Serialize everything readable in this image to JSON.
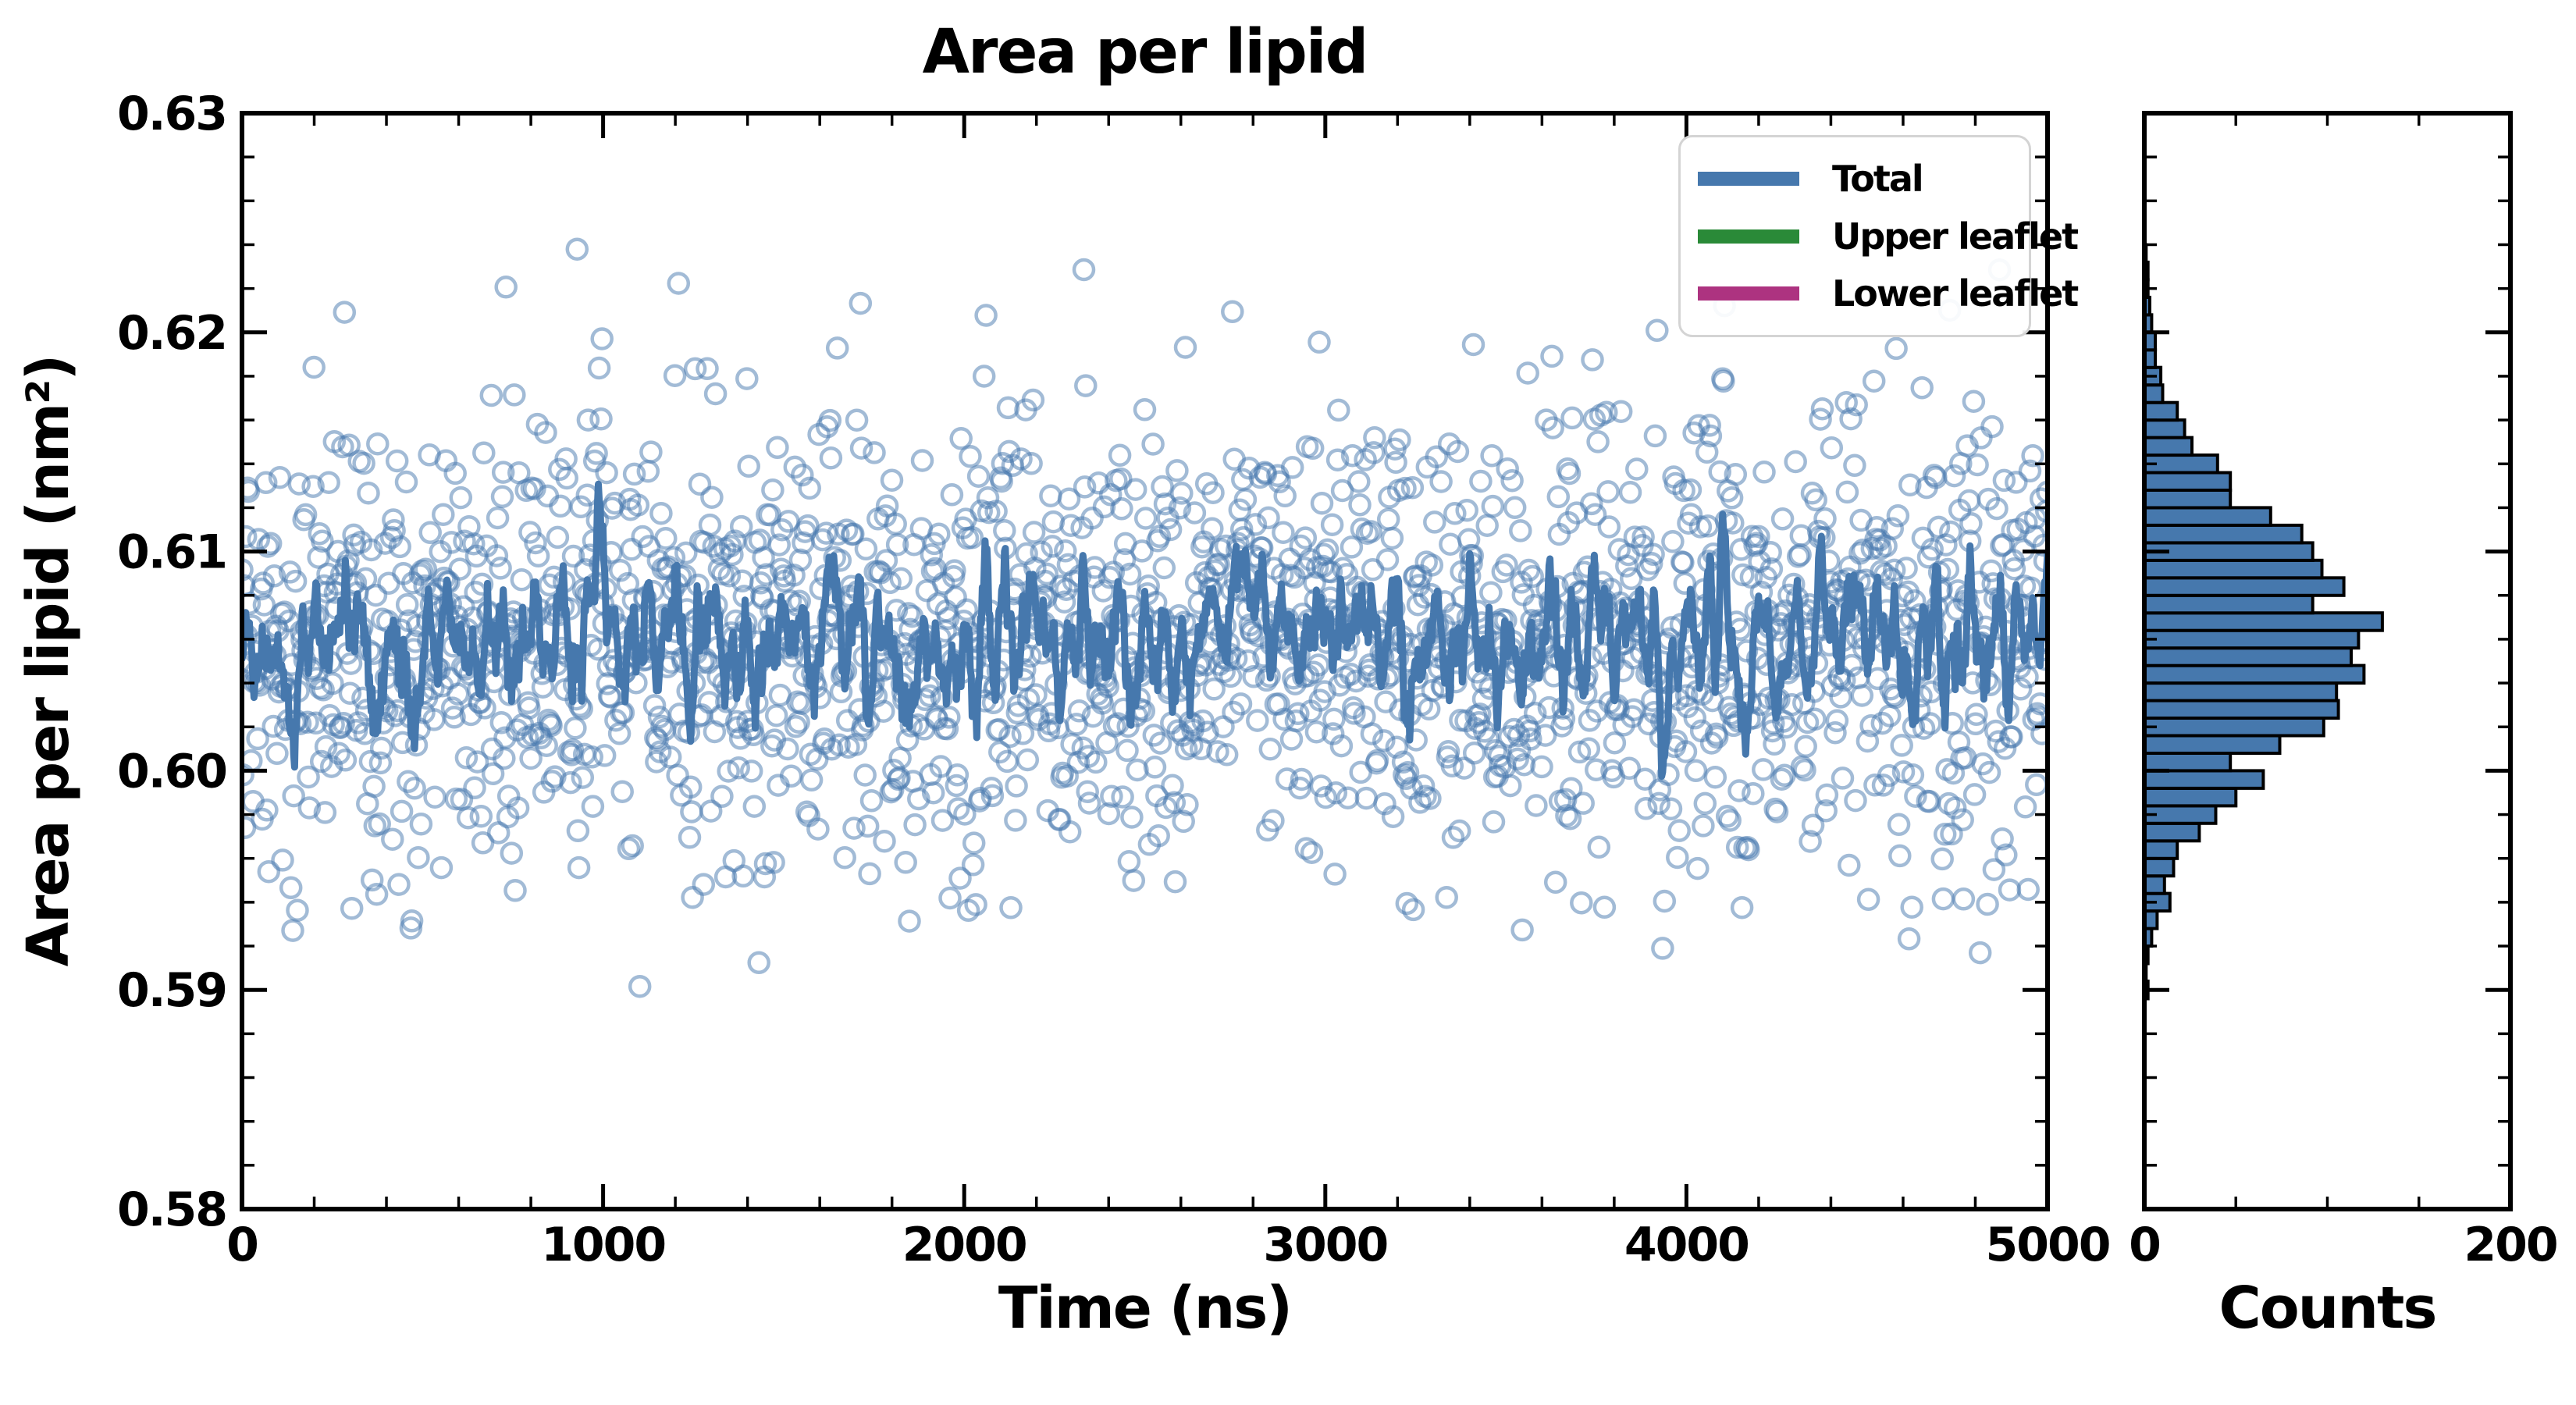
{
  "figure": {
    "background": "#ffffff"
  },
  "legend": {
    "items": [
      {
        "label": "Total",
        "color": "#4678ad"
      },
      {
        "label": "Upper leaflet",
        "color": "#2a8a38"
      },
      {
        "label": "Lower leaflet",
        "color": "#ad3380"
      }
    ]
  },
  "chart_data": {
    "type": "composite",
    "panels": [
      {
        "id": "timeseries",
        "type": "scatter+line",
        "title": "Area per lipid",
        "xlabel": "Time (ns)",
        "ylabel": "Area per lipid (nm²)",
        "xlim": [
          0,
          5000
        ],
        "ylim": [
          0.58,
          0.63
        ],
        "xticks": [
          {
            "v": 0,
            "label": "0"
          },
          {
            "v": 1000,
            "label": "1000"
          },
          {
            "v": 2000,
            "label": "2000"
          },
          {
            "v": 3000,
            "label": "3000"
          },
          {
            "v": 4000,
            "label": "4000"
          },
          {
            "v": 5000,
            "label": "5000"
          }
        ],
        "xtick_minor_step": 200,
        "yticks": [
          {
            "v": 0.58,
            "label": "0.58"
          },
          {
            "v": 0.59,
            "label": "0.59"
          },
          {
            "v": 0.6,
            "label": "0.60"
          },
          {
            "v": 0.61,
            "label": "0.61"
          },
          {
            "v": 0.62,
            "label": "0.62"
          },
          {
            "v": 0.63,
            "label": "0.63"
          }
        ],
        "ytick_minor_step": 0.002,
        "tick_direction": "in",
        "grid": false,
        "series": [
          {
            "name": "Total (per-frame samples)",
            "style": "open-circle-scatter",
            "color": "#4678ad",
            "alpha": 0.5,
            "n": 1957,
            "mean": 0.6068,
            "std": 0.0052,
            "sampled_from": "histogram_bins",
            "seed": 20240613
          },
          {
            "name": "Total (running average)",
            "style": "line",
            "color": "#4678ad",
            "linewidth": 9,
            "window": 9,
            "mean": 0.6065
          },
          {
            "name": "Upper leaflet",
            "style": "line",
            "color": "#2a8a38",
            "visible_in_plot": false
          },
          {
            "name": "Lower leaflet",
            "style": "line",
            "color": "#ad3380",
            "visible_in_plot": false
          }
        ]
      },
      {
        "id": "histogram",
        "type": "bar-horizontal",
        "xlabel": "Counts",
        "xlim": [
          0,
          200
        ],
        "xticks": [
          {
            "v": 0,
            "label": "0"
          },
          {
            "v": 200,
            "label": "200"
          }
        ],
        "xticks_minor": [
          50,
          100,
          150
        ],
        "ylim": [
          0.58,
          0.63
        ],
        "bar_color": "#4678ad",
        "bar_edge_color": "#000000",
        "bins": {
          "start": 0.5896,
          "width": 0.0008,
          "counts": [
            2,
            1,
            2,
            4,
            7,
            14,
            11,
            16,
            18,
            30,
            39,
            50,
            65,
            47,
            74,
            98,
            106,
            105,
            120,
            113,
            117,
            130,
            92,
            109,
            97,
            92,
            86,
            69,
            47,
            47,
            40,
            26,
            22,
            18,
            10,
            9,
            6,
            6,
            4,
            3,
            2,
            2,
            1
          ]
        }
      }
    ]
  }
}
